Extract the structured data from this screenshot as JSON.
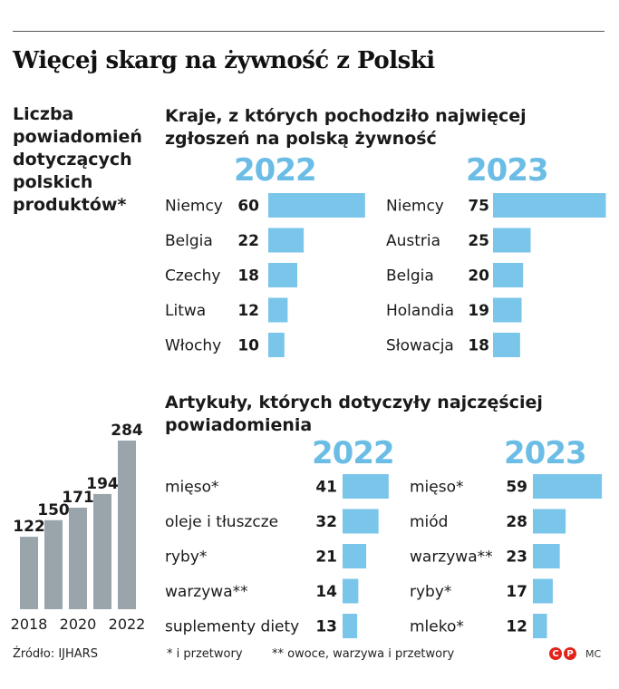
{
  "title": "Więcej skarg na żywność z Polski",
  "colors": {
    "bar_gray": "#9aa4ab",
    "bar_blue": "#7ac5ea",
    "year_blue": "#6bbde6",
    "logo_red": "#e2231a"
  },
  "left": {
    "title": "Liczba powiadomień dotyczących polskich produktów*"
  },
  "countries": {
    "title": "Kraje, z których pochodziło najwięcej zgłoszeń na polską żywność",
    "year_a": "2022",
    "year_b": "2023"
  },
  "articles": {
    "title": "Artykuły, których dotyczyły najczęściej powiadomienia",
    "year_a": "2022",
    "year_b": "2023"
  },
  "footer": {
    "source": "Źródło: IJHARS",
    "note1": "* i przetwory",
    "note2": "** owoce, warzywa i przetwory",
    "logo_letters": [
      "C",
      "P"
    ],
    "credit": "MC"
  },
  "chart_data": [
    {
      "type": "bar",
      "title": "Liczba powiadomień dotyczących polskich produktów*",
      "categories": [
        "2018",
        "2019",
        "2020",
        "2021",
        "2022"
      ],
      "tick_labels": [
        "2018",
        "",
        "2020",
        "",
        "2022"
      ],
      "values": [
        122,
        150,
        171,
        194,
        284
      ]
    },
    {
      "type": "bar",
      "title": "2022",
      "orientation": "horizontal",
      "categories": [
        "Niemcy",
        "Belgia",
        "Czechy",
        "Litwa",
        "Włochy"
      ],
      "values": [
        60,
        22,
        18,
        12,
        10
      ]
    },
    {
      "type": "bar",
      "title": "2023",
      "orientation": "horizontal",
      "categories": [
        "Niemcy",
        "Austria",
        "Belgia",
        "Holandia",
        "Słowacja"
      ],
      "values": [
        75,
        25,
        20,
        19,
        18
      ]
    },
    {
      "type": "bar",
      "title": "2022",
      "orientation": "horizontal",
      "categories": [
        "mięso*",
        "oleje i tłuszcze",
        "ryby*",
        "warzywa**",
        "suplementy diety"
      ],
      "values": [
        41,
        32,
        21,
        14,
        13
      ]
    },
    {
      "type": "bar",
      "title": "2023",
      "orientation": "horizontal",
      "categories": [
        "mięso*",
        "miód",
        "warzywa**",
        "ryby*",
        "mleko*"
      ],
      "values": [
        59,
        28,
        23,
        17,
        12
      ]
    }
  ]
}
